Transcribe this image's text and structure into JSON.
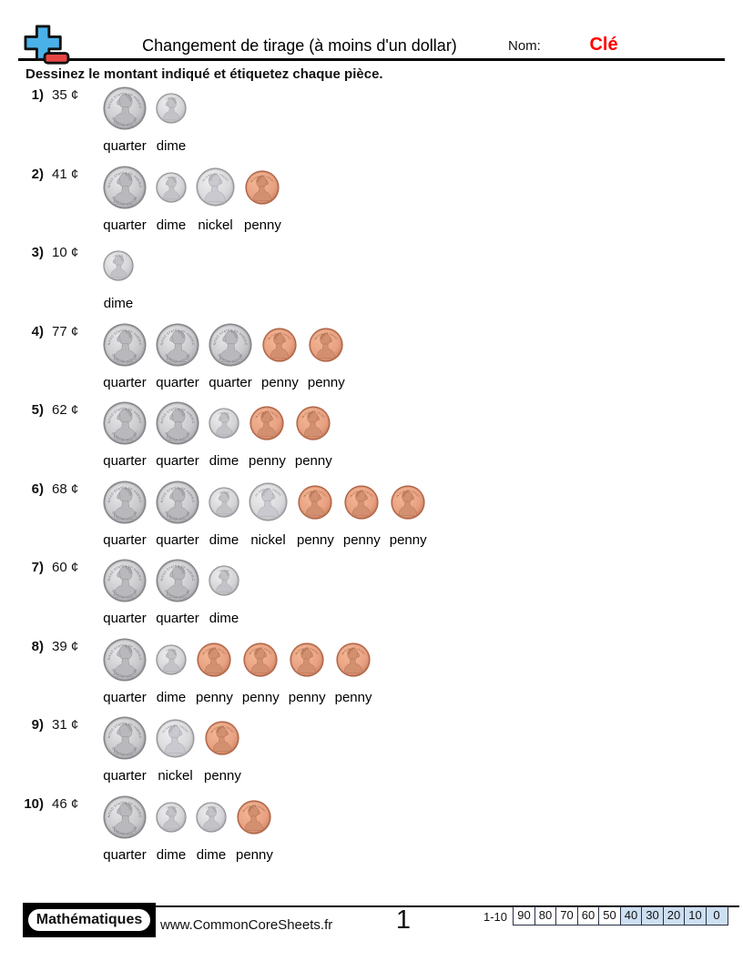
{
  "colors": {
    "answer_key_red": "#ff0000",
    "score_highlight_blue": "#cddff2",
    "score_cell_border": "#273044",
    "logo_blue": "#4ab1e8",
    "logo_red": "#e84545",
    "rule_black": "#000000"
  },
  "header": {
    "title": "Changement de tirage (à moins d'un dollar)",
    "name_label": "Nom:",
    "name_value": "Clé"
  },
  "instructions": "Dessinez le montant indiqué et étiquetez chaque pièce.",
  "problems": [
    {
      "number": "1)",
      "amount": "35 ¢",
      "coins": [
        "quarter",
        "dime"
      ]
    },
    {
      "number": "2)",
      "amount": "41 ¢",
      "coins": [
        "quarter",
        "dime",
        "nickel",
        "penny"
      ]
    },
    {
      "number": "3)",
      "amount": "10 ¢",
      "coins": [
        "dime"
      ]
    },
    {
      "number": "4)",
      "amount": "77 ¢",
      "coins": [
        "quarter",
        "quarter",
        "quarter",
        "penny",
        "penny"
      ]
    },
    {
      "number": "5)",
      "amount": "62 ¢",
      "coins": [
        "quarter",
        "quarter",
        "dime",
        "penny",
        "penny"
      ]
    },
    {
      "number": "6)",
      "amount": "68 ¢",
      "coins": [
        "quarter",
        "quarter",
        "dime",
        "nickel",
        "penny",
        "penny",
        "penny"
      ]
    },
    {
      "number": "7)",
      "amount": "60 ¢",
      "coins": [
        "quarter",
        "quarter",
        "dime"
      ]
    },
    {
      "number": "8)",
      "amount": "39 ¢",
      "coins": [
        "quarter",
        "dime",
        "penny",
        "penny",
        "penny",
        "penny"
      ]
    },
    {
      "number": "9)",
      "amount": "31 ¢",
      "coins": [
        "quarter",
        "nickel",
        "penny"
      ]
    },
    {
      "number": "10)",
      "amount": "46 ¢",
      "coins": [
        "quarter",
        "dime",
        "dime",
        "penny"
      ]
    }
  ],
  "coin_styles": {
    "quarter": {
      "label": "quarter",
      "size": 48,
      "face": "left",
      "inscription": "UNITED STATES OF AMERICA",
      "bottom_inscription": "QUARTER DOLLAR",
      "rim": "#87878b",
      "body_light": "#e8e8ea",
      "body": "#c9c9cc",
      "body_dark": "#ababaf",
      "bust": "#b9b9bd",
      "bust_stroke": "#8f8f94",
      "text": "#6f6f74"
    },
    "dime": {
      "label": "dime",
      "size": 34,
      "face": "left",
      "inscription": "LIBERTY",
      "bottom_inscription": "",
      "rim": "#919195",
      "body_light": "#eeeef0",
      "body": "#d4d4d7",
      "body_dark": "#b6b6ba",
      "bust": "#c2c2c7",
      "bust_stroke": "#97979c",
      "text": "#77777c"
    },
    "nickel": {
      "label": "nickel",
      "size": 43,
      "face": "right",
      "inscription": "IN GOD WE TRUST",
      "bottom_inscription": "",
      "rim": "#9a9a9e",
      "body_light": "#f0f0f2",
      "body": "#d9d9dc",
      "body_dark": "#bebec2",
      "bust": "#c9c9cf",
      "bust_stroke": "#9d9da3",
      "text": "#7c7c82"
    },
    "penny": {
      "label": "penny",
      "size": 38,
      "face": "right",
      "inscription": "IN GOD WE TRUST",
      "bottom_inscription": "",
      "rim": "#ad6243",
      "body_light": "#f4b895",
      "body": "#e8a182",
      "body_dark": "#c97f5e",
      "bust": "#d29070",
      "bust_stroke": "#aa674a",
      "text": "#8d5234"
    }
  },
  "footer": {
    "brand": "Mathématiques",
    "website": "www.CommonCoreSheets.fr",
    "page_number": "1",
    "score_label": "1-10",
    "score_cells": [
      {
        "value": "90",
        "highlight": false
      },
      {
        "value": "80",
        "highlight": false
      },
      {
        "value": "70",
        "highlight": false
      },
      {
        "value": "60",
        "highlight": false
      },
      {
        "value": "50",
        "highlight": false
      },
      {
        "value": "40",
        "highlight": true
      },
      {
        "value": "30",
        "highlight": true
      },
      {
        "value": "20",
        "highlight": true
      },
      {
        "value": "10",
        "highlight": true
      },
      {
        "value": "0",
        "highlight": true
      }
    ]
  }
}
